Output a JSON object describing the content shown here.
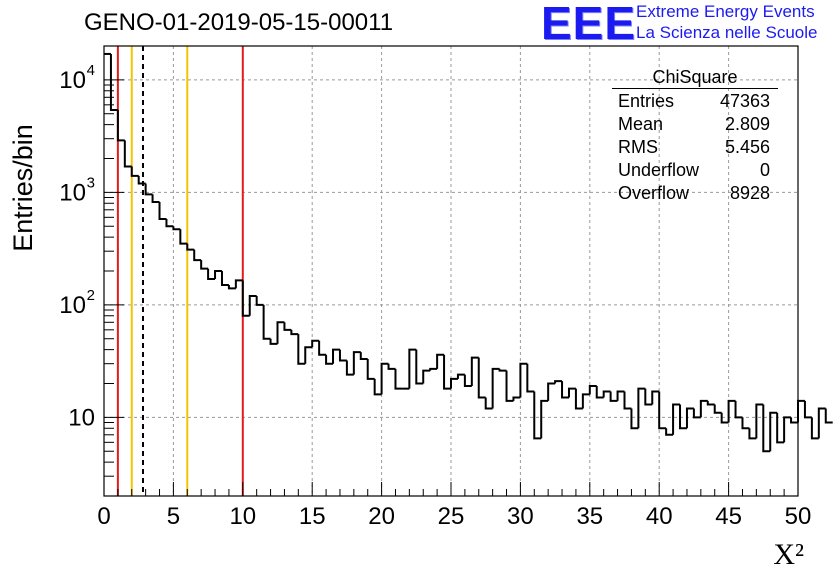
{
  "title": "GENO-01-2019-05-15-00011",
  "logo": {
    "mark": "EEE",
    "line1": "Extreme Energy Events",
    "line2": "La Scienza nelle Scuole",
    "color": "#1b1bf0"
  },
  "stats": {
    "title": "ChiSquare",
    "rows": [
      {
        "label": "Entries",
        "value": "47363"
      },
      {
        "label": "Mean",
        "value": "2.809"
      },
      {
        "label": "RMS",
        "value": "5.456"
      },
      {
        "label": "Underflow",
        "value": "0"
      },
      {
        "label": "Overflow",
        "value": "8928"
      }
    ]
  },
  "chart_data": {
    "type": "bar",
    "subtype": "histogram-step",
    "xlabel": "X²",
    "ylabel": "Entries/bin",
    "xlim": [
      0,
      50
    ],
    "ylim": [
      2,
      20000
    ],
    "yscale": "log",
    "bin_width": 0.5,
    "grid": true,
    "x_ticks": [
      "0",
      "5",
      "10",
      "15",
      "20",
      "25",
      "30",
      "35",
      "40",
      "45",
      "50"
    ],
    "y_ticks": [
      {
        "value": 10,
        "label": "10"
      },
      {
        "value": 100,
        "label": "10",
        "exp": "2"
      },
      {
        "value": 1000,
        "label": "10",
        "exp": "3"
      },
      {
        "value": 10000,
        "label": "10",
        "exp": "4"
      }
    ],
    "values": [
      17000,
      5400,
      2900,
      1700,
      1400,
      1200,
      960,
      820,
      580,
      500,
      470,
      350,
      310,
      250,
      210,
      170,
      200,
      150,
      140,
      165,
      80,
      120,
      100,
      50,
      45,
      70,
      60,
      55,
      30,
      42,
      48,
      36,
      30,
      40,
      32,
      24,
      38,
      33,
      22,
      16,
      30,
      27,
      18,
      18,
      40,
      20,
      26,
      27,
      36,
      18,
      22,
      24,
      19,
      34,
      15,
      12,
      27,
      26,
      14,
      15,
      30,
      17,
      6.5,
      14,
      20,
      21,
      15,
      18,
      12,
      16,
      19,
      15,
      17,
      14,
      17,
      12,
      8,
      18,
      13,
      17,
      8,
      7,
      13,
      8,
      12,
      10,
      14,
      13,
      11,
      9,
      14,
      10,
      8,
      6.5,
      13,
      5,
      11,
      6,
      10,
      9,
      14,
      10,
      6.5,
      12,
      9
    ],
    "vertical_lines": [
      {
        "x": 1,
        "color": "#e41a1c",
        "style": "solid"
      },
      {
        "x": 2,
        "color": "#f5c400",
        "style": "solid"
      },
      {
        "x": 2.809,
        "color": "#000000",
        "style": "dashed"
      },
      {
        "x": 6,
        "color": "#f5c400",
        "style": "solid"
      },
      {
        "x": 10,
        "color": "#e41a1c",
        "style": "solid"
      }
    ]
  }
}
